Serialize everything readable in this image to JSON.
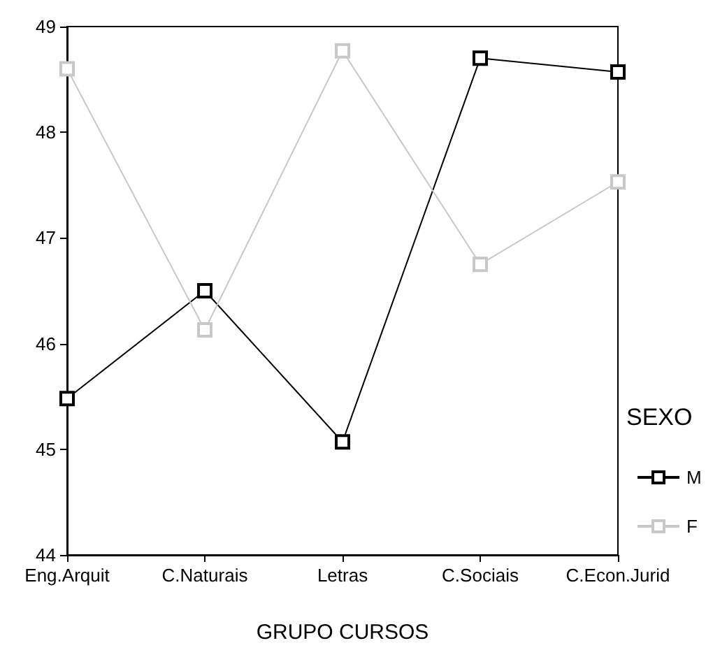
{
  "chart_data": {
    "type": "line",
    "xlabel": "GRUPO CURSOS",
    "legend_title": "SEXO",
    "categories": [
      "Eng.Arquit",
      "C.Naturais",
      "Letras",
      "C.Sociais",
      "C.Econ.Jurid"
    ],
    "series": [
      {
        "name": "M",
        "color": "#000000",
        "values": [
          45.48,
          46.5,
          45.07,
          48.7,
          48.57
        ]
      },
      {
        "name": "F",
        "color": "#c8c8c8",
        "values": [
          48.6,
          46.13,
          48.77,
          46.75,
          47.53
        ]
      }
    ],
    "ylim": [
      44,
      49
    ],
    "yticks": [
      44,
      45,
      46,
      47,
      48,
      49
    ],
    "grid": false,
    "legend": "right",
    "marker": "square",
    "line_style": "solid"
  }
}
